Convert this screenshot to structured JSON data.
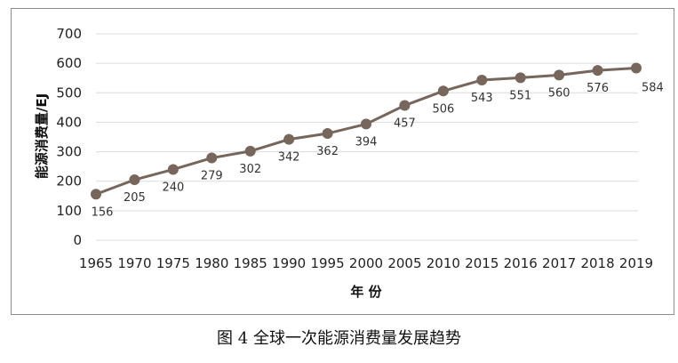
{
  "chart_data": {
    "type": "line",
    "categories": [
      "1965",
      "1970",
      "1975",
      "1980",
      "1985",
      "1990",
      "1995",
      "2000",
      "2005",
      "2010",
      "2015",
      "2016",
      "2017",
      "2018",
      "2019"
    ],
    "series": [
      {
        "values": [
          156,
          205,
          240,
          279,
          302,
          342,
          362,
          394,
          457,
          506,
          543,
          551,
          560,
          576,
          584
        ]
      }
    ],
    "xlabel": "年 份",
    "ylabel": "能源消费量/EJ",
    "ylim": [
      0,
      700
    ],
    "yticks": [
      0,
      100,
      200,
      300,
      400,
      500,
      600,
      700
    ],
    "grid": true,
    "line_color": "#76665c",
    "marker_color": "#76665c"
  },
  "caption": "图 4  全球一次能源消费量发展趋势"
}
